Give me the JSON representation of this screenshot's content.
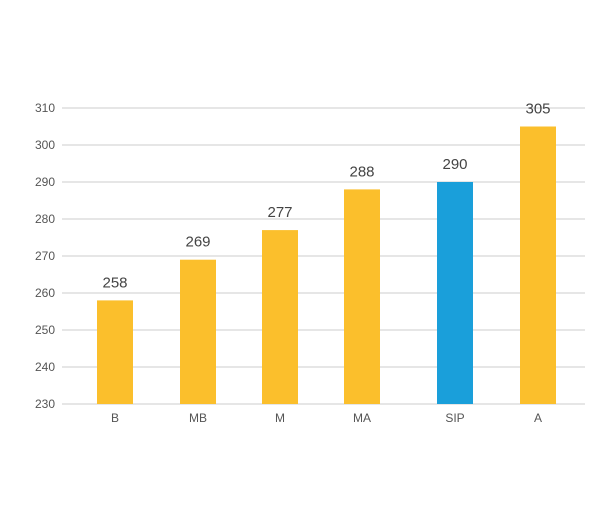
{
  "chart_data": {
    "type": "bar",
    "title": "",
    "xlabel": "",
    "ylabel": "",
    "categories": [
      "B",
      "MB",
      "M",
      "MA",
      "SIP",
      "A"
    ],
    "values": [
      258,
      269,
      277,
      288,
      290,
      305
    ],
    "ylim": [
      230,
      310
    ],
    "yticks": [
      230,
      240,
      250,
      260,
      270,
      280,
      290,
      300,
      310
    ],
    "grid": true,
    "legend": "none",
    "colors": {
      "default_bar": "#FBBF2C",
      "highlight_bar": "#1A9FDA",
      "highlight_category": "SIP"
    }
  }
}
